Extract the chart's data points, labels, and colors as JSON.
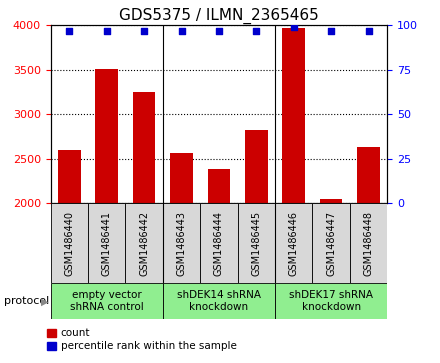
{
  "title": "GDS5375 / ILMN_2365465",
  "samples": [
    "GSM1486440",
    "GSM1486441",
    "GSM1486442",
    "GSM1486443",
    "GSM1486444",
    "GSM1486445",
    "GSM1486446",
    "GSM1486447",
    "GSM1486448"
  ],
  "counts": [
    2600,
    3510,
    3250,
    2570,
    2380,
    2820,
    3970,
    2050,
    2630
  ],
  "percentile_ranks": [
    97,
    97,
    97,
    97,
    97,
    97,
    99,
    97,
    97
  ],
  "ylim_left": [
    2000,
    4000
  ],
  "ylim_right": [
    0,
    100
  ],
  "yticks_left": [
    2000,
    2500,
    3000,
    3500,
    4000
  ],
  "yticks_right": [
    0,
    25,
    50,
    75,
    100
  ],
  "bar_color": "#cc0000",
  "dot_color": "#0000cc",
  "background_color": "#ffffff",
  "sample_box_color": "#d8d8d8",
  "groups": [
    {
      "label": "empty vector\nshRNA control",
      "start": 0,
      "end": 3,
      "color": "#90ee90"
    },
    {
      "label": "shDEK14 shRNA\nknockdown",
      "start": 3,
      "end": 6,
      "color": "#90ee90"
    },
    {
      "label": "shDEK17 shRNA\nknockdown",
      "start": 6,
      "end": 9,
      "color": "#90ee90"
    }
  ],
  "protocol_label": "protocol",
  "legend_count_label": "count",
  "legend_percentile_label": "percentile rank within the sample",
  "title_fontsize": 11,
  "tick_fontsize": 8,
  "sample_fontsize": 7,
  "group_fontsize": 7.5
}
